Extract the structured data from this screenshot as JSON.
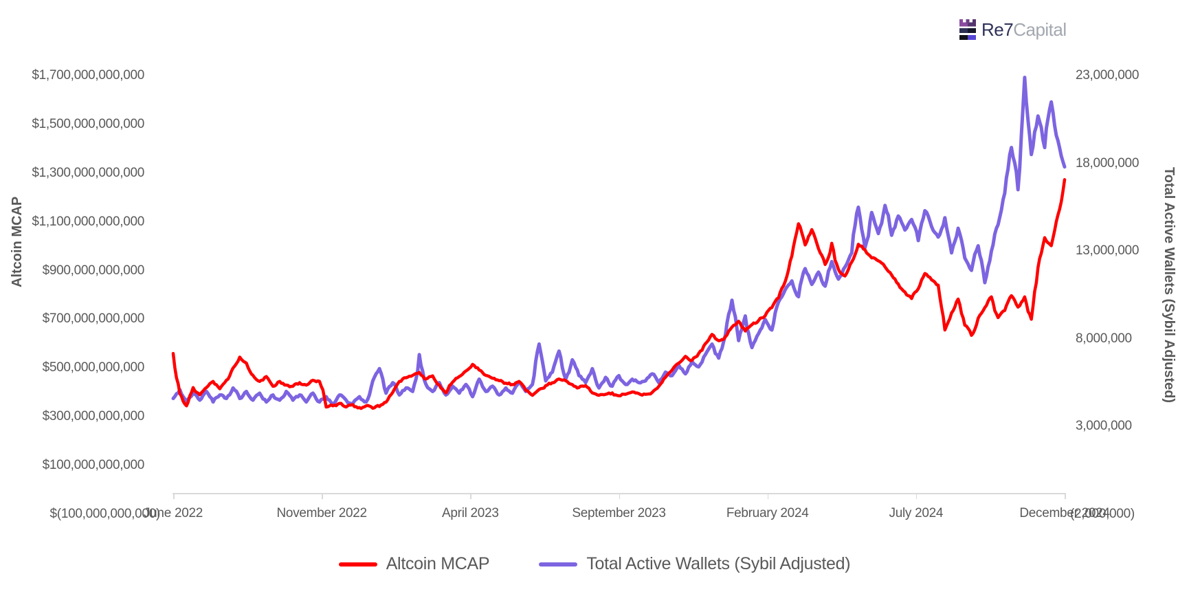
{
  "logo": {
    "text_primary": "Re7",
    "text_secondary": "Capital"
  },
  "chart_data": {
    "type": "line",
    "title": "",
    "x_axis": {
      "tick_labels": [
        "June 2022",
        "November 2022",
        "April 2023",
        "September 2023",
        "February 2024",
        "July 2024",
        "December 2024"
      ],
      "span": {
        "start": "June 2022",
        "end": "December 2024"
      }
    },
    "left_axis": {
      "title": "Altcoin MCAP",
      "tick_labels": [
        "$1,700,000,000,000",
        "$1,500,000,000,000",
        "$1,300,000,000,000",
        "$1,100,000,000,000",
        "$900,000,000,000",
        "$700,000,000,000",
        "$500,000,000,000",
        "$300,000,000,000",
        "$100,000,000,000",
        "$(100,000,000,000)"
      ],
      "range_billions": [
        -100,
        1700
      ]
    },
    "right_axis": {
      "title": "Total Active Wallets (Sybil Adjusted)",
      "tick_labels": [
        "23,000,000",
        "18,000,000",
        "13,000,000",
        "8,000,000",
        "3,000,000",
        "(2,000,000)"
      ],
      "range_millions": [
        -2,
        23
      ]
    },
    "legend": [
      {
        "label": "Altcoin MCAP",
        "color": "#ff0000"
      },
      {
        "label": "Total Active Wallets (Sybil Adjusted)",
        "color": "#7d64e1"
      }
    ],
    "grid": "off",
    "legend_position": "bottom-center",
    "series": [
      {
        "name": "Altcoin MCAP",
        "axis": "left",
        "unit": "USD billions",
        "color": "#ff0000",
        "values": [
          560,
          395,
          345,
          420,
          390,
          420,
          445,
          415,
          450,
          500,
          545,
          520,
          470,
          445,
          465,
          425,
          445,
          430,
          425,
          440,
          430,
          450,
          445,
          340,
          345,
          355,
          340,
          350,
          338,
          345,
          335,
          342,
          360,
          400,
          445,
          460,
          470,
          482,
          455,
          468,
          430,
          398,
          442,
          465,
          488,
          515,
          492,
          470,
          458,
          448,
          438,
          432,
          445,
          408,
          388,
          412,
          428,
          440,
          455,
          448,
          432,
          420,
          428,
          398,
          388,
          392,
          398,
          386,
          392,
          402,
          395,
          392,
          400,
          425,
          462,
          492,
          520,
          548,
          532,
          560,
          600,
          638,
          612,
          628,
          668,
          692,
          652,
          678,
          695,
          715,
          748,
          788,
          855,
          960,
          1092,
          1005,
          1068,
          990,
          925,
          1012,
          905,
          878,
          935,
          1008,
          985,
          952,
          940,
          915,
          882,
          845,
          812,
          785,
          825,
          888,
          862,
          840,
          656,
          726,
          783,
          676,
          634,
          704,
          748,
          792,
          707,
          736,
          797,
          750,
          792,
          700,
          912,
          1035,
          1002,
          1128,
          1273
        ]
      },
      {
        "name": "Total Active Wallets (Sybil Adjusted)",
        "axis": "right",
        "unit": "millions of wallets",
        "color": "#7d64e1",
        "values": [
          4.6,
          5.1,
          4.4,
          4.9,
          4.5,
          5.0,
          4.4,
          4.8,
          4.6,
          5.2,
          4.6,
          5.0,
          4.5,
          4.9,
          4.4,
          4.8,
          4.5,
          5.0,
          4.5,
          4.8,
          4.4,
          4.9,
          4.4,
          4.7,
          4.3,
          4.8,
          4.5,
          4.3,
          4.7,
          4.4,
          5.6,
          6.3,
          4.9,
          5.5,
          4.8,
          5.2,
          5.0,
          7.1,
          5.4,
          5.0,
          5.5,
          4.8,
          5.3,
          4.9,
          5.4,
          4.7,
          5.7,
          5.0,
          5.3,
          4.8,
          5.2,
          4.9,
          5.5,
          5.0,
          5.4,
          7.7,
          5.6,
          6.1,
          7.3,
          5.7,
          6.8,
          5.9,
          5.5,
          6.3,
          5.2,
          5.8,
          5.3,
          5.9,
          5.4,
          5.7,
          5.5,
          5.6,
          6.0,
          5.5,
          6.1,
          5.9,
          6.5,
          6.0,
          6.7,
          6.4,
          7.1,
          7.7,
          6.9,
          8.2,
          10.2,
          7.9,
          9.3,
          7.5,
          8.3,
          9.1,
          8.5,
          10.1,
          10.8,
          11.3,
          10.4,
          12.0,
          11.1,
          11.8,
          11.0,
          12.4,
          11.4,
          12.1,
          12.9,
          15.5,
          13.2,
          15.2,
          14.0,
          15.6,
          13.9,
          15.0,
          14.2,
          14.8,
          13.6,
          15.3,
          14.4,
          13.8,
          14.9,
          12.9,
          14.3,
          12.6,
          11.9,
          13.3,
          11.2,
          13.0,
          14.5,
          16.3,
          18.9,
          16.5,
          22.9,
          18.5,
          20.7,
          18.9,
          21.5,
          19.3,
          17.8
        ]
      }
    ]
  }
}
